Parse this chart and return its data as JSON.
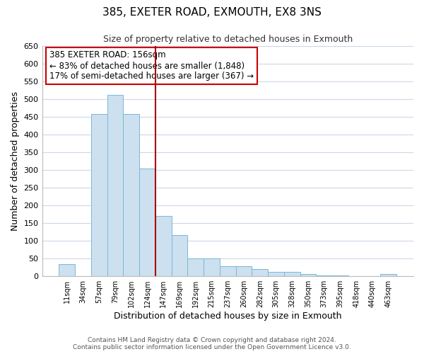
{
  "title": "385, EXETER ROAD, EXMOUTH, EX8 3NS",
  "subtitle": "Size of property relative to detached houses in Exmouth",
  "xlabel": "Distribution of detached houses by size in Exmouth",
  "ylabel": "Number of detached properties",
  "bar_labels": [
    "11sqm",
    "34sqm",
    "57sqm",
    "79sqm",
    "102sqm",
    "124sqm",
    "147sqm",
    "169sqm",
    "192sqm",
    "215sqm",
    "237sqm",
    "260sqm",
    "282sqm",
    "305sqm",
    "328sqm",
    "350sqm",
    "373sqm",
    "395sqm",
    "418sqm",
    "440sqm",
    "463sqm"
  ],
  "bar_values": [
    35,
    0,
    458,
    513,
    458,
    305,
    170,
    117,
    50,
    50,
    28,
    28,
    20,
    12,
    12,
    7,
    3,
    2,
    1,
    0,
    7
  ],
  "bar_color": "#cce0f0",
  "bar_edge_color": "#7ab8d8",
  "ylim": [
    0,
    650
  ],
  "yticks": [
    0,
    50,
    100,
    150,
    200,
    250,
    300,
    350,
    400,
    450,
    500,
    550,
    600,
    650
  ],
  "vline_index": 6,
  "vline_color": "#aa0000",
  "annotation_title": "385 EXETER ROAD: 156sqm",
  "annotation_line1": "← 83% of detached houses are smaller (1,848)",
  "annotation_line2": "17% of semi-detached houses are larger (367) →",
  "annotation_box_edge": "#cc0000",
  "footer_line1": "Contains HM Land Registry data © Crown copyright and database right 2024.",
  "footer_line2": "Contains public sector information licensed under the Open Government Licence v3.0.",
  "background_color": "#ffffff",
  "grid_color": "#ccd8e8"
}
